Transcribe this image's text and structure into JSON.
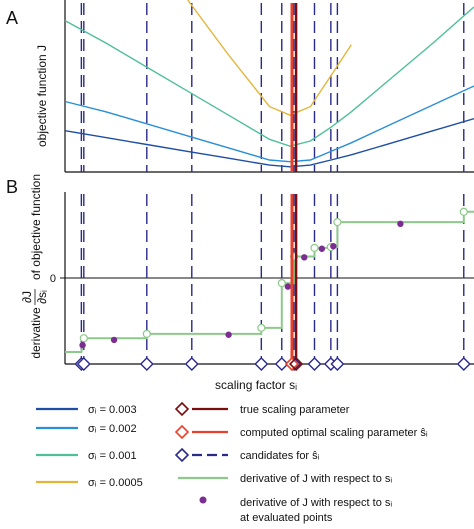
{
  "panel_a": {
    "letter": "A",
    "ylabel": "objective function J"
  },
  "panel_b": {
    "letter": "B",
    "ylabel_pre": "derivative",
    "ylabel_frac_num": "∂J",
    "ylabel_frac_den": "∂sᵢ",
    "ylabel_post": "of objective function",
    "zero_tick": "0"
  },
  "xlabel": "scaling factor sᵢ",
  "legend": {
    "left": [
      {
        "text": "σᵢ = 0.003",
        "color": "#1f4fa3"
      },
      {
        "text": "σᵢ = 0.002",
        "color": "#2a8fd6"
      },
      {
        "text": "σᵢ = 0.001",
        "color": "#4fbf9a"
      },
      {
        "text": "σᵢ = 0.0005",
        "color": "#e2b53a"
      }
    ],
    "right": [
      {
        "text": "true scaling parameter",
        "icon": "diamond-line",
        "color": "#7a0e0e"
      },
      {
        "text": "computed optimal scaling parameter ŝᵢ",
        "icon": "diamond-line",
        "color": "#e8402a"
      },
      {
        "text": "candidates for ŝᵢ",
        "icon": "diamond-dash",
        "color": "#2a2a8a"
      },
      {
        "text": "derivative of J with respect to sᵢ",
        "icon": "line",
        "color": "#8dc98a"
      },
      {
        "text": "derivative of J with respect to sᵢ",
        "text2": "at evaluated points",
        "icon": "dot",
        "color": "#7b2d91"
      }
    ]
  },
  "chart_data": [
    {
      "type": "line",
      "panel": "A",
      "title": "",
      "xlabel": "scaling factor sᵢ",
      "ylabel": "objective function J",
      "xlim": [
        0,
        100
      ],
      "ylim": [
        0,
        100
      ],
      "grid": false,
      "x": [
        0,
        10,
        20,
        30,
        40,
        50,
        55,
        60,
        65,
        70,
        80,
        90,
        100
      ],
      "series": [
        {
          "name": "σᵢ = 0.003",
          "color": "#1f4fa3",
          "values": [
            24,
            20,
            16,
            12,
            8,
            4,
            3,
            4,
            7,
            10,
            17,
            24,
            31
          ]
        },
        {
          "name": "σᵢ = 0.002",
          "color": "#2a8fd6",
          "values": [
            41,
            35,
            28,
            21,
            14,
            7,
            6,
            7,
            12,
            17,
            28,
            39,
            50
          ]
        },
        {
          "name": "σᵢ = 0.001",
          "color": "#4fbf9a",
          "values": [
            88,
            75,
            61,
            47,
            33,
            19,
            15,
            18,
            26,
            35,
            55,
            75,
            96
          ]
        },
        {
          "name": "σᵢ = 0.0005",
          "color": "#e2b53a",
          "values": [
            null,
            null,
            null,
            100,
            68,
            38,
            33,
            38,
            56,
            74,
            null,
            null,
            null
          ]
        }
      ],
      "candidate_positions": [
        4,
        4.6,
        20,
        31,
        48,
        53,
        56,
        61,
        65,
        66.6,
        97.5
      ],
      "true_parameter": 56.5,
      "computed_optimum": 55.5
    },
    {
      "type": "line",
      "panel": "B",
      "title": "",
      "xlabel": "scaling factor sᵢ",
      "ylabel": "derivative ∂J/∂sᵢ of objective function",
      "xlim": [
        0,
        100
      ],
      "ylim": [
        -1,
        1
      ],
      "grid": false,
      "derivative_steps": [
        {
          "x0": 0,
          "x1": 4,
          "y": -0.86
        },
        {
          "x0": 4.6,
          "x1": 20,
          "y": -0.7
        },
        {
          "x0": 20,
          "x1": 48,
          "y": -0.65
        },
        {
          "x0": 48,
          "x1": 53,
          "y": -0.58
        },
        {
          "x0": 53,
          "x1": 56,
          "y": -0.06
        },
        {
          "x0": 56,
          "x1": 61,
          "y": 0.25
        },
        {
          "x0": 61,
          "x1": 65,
          "y": 0.35
        },
        {
          "x0": 65,
          "x1": 66.6,
          "y": 0.36
        },
        {
          "x0": 66.6,
          "x1": 97.5,
          "y": 0.65
        },
        {
          "x0": 97.5,
          "x1": 100,
          "y": 0.77
        }
      ],
      "evaluated_points": [
        {
          "x": 4.3,
          "y": -0.78
        },
        {
          "x": 12,
          "y": -0.72
        },
        {
          "x": 40,
          "y": -0.66
        },
        {
          "x": 54.5,
          "y": -0.1
        },
        {
          "x": 58.5,
          "y": 0.24
        },
        {
          "x": 62.8,
          "y": 0.34
        },
        {
          "x": 65.6,
          "y": 0.37
        },
        {
          "x": 82,
          "y": 0.63
        }
      ],
      "candidate_positions": [
        4,
        4.6,
        20,
        31,
        48,
        53,
        56,
        61,
        65,
        66.6,
        97.5
      ],
      "true_parameter": 56.5,
      "computed_optimum": 55.5
    }
  ]
}
